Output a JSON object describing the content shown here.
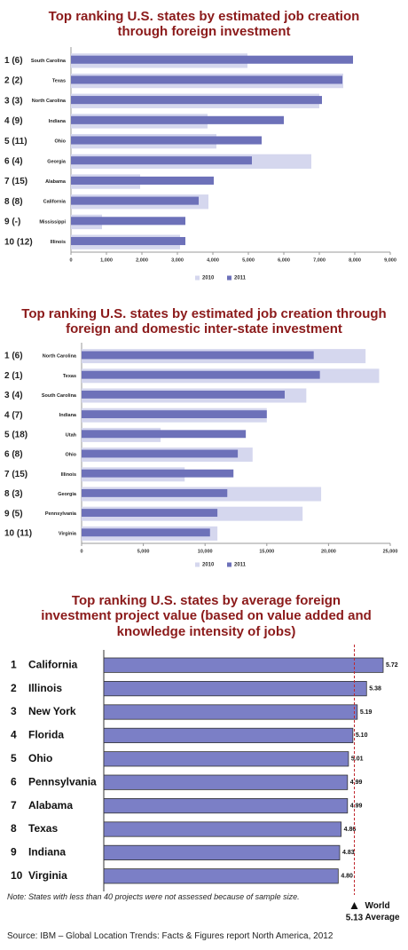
{
  "chart_data": [
    {
      "type": "bar",
      "title": "Top ranking U.S. states by estimated job creation through foreign investment",
      "ranks": [
        "1 (6)",
        "2 (2)",
        "3 (3)",
        "4 (9)",
        "5 (11)",
        "6 (4)",
        "7 (15)",
        "8 (8)",
        "9 (-)",
        "10 (12)"
      ],
      "categories": [
        "South Carolina",
        "Texas",
        "North Carolina",
        "Indiana",
        "Ohio",
        "Georgia",
        "Alabama",
        "California",
        "Mississippi",
        "Illinois"
      ],
      "series": [
        {
          "name": "2010",
          "color": "#d5d7ee",
          "values": [
            4975,
            7675,
            7000,
            3850,
            4100,
            6775,
            1950,
            3875,
            875,
            3075
          ]
        },
        {
          "name": "2011",
          "color": "#6d71b9",
          "values": [
            7950,
            7650,
            7075,
            6000,
            5375,
            5100,
            4025,
            3600,
            3225,
            3225
          ]
        }
      ],
      "xlim": [
        0,
        9000
      ],
      "xticks": [
        0,
        {
          "value": 1000,
          "label": "1,000"
        },
        {
          "value": 2000,
          "label": "2,000"
        },
        {
          "value": 3000,
          "label": "3,000"
        },
        {
          "value": 4000,
          "label": "4,000"
        },
        {
          "value": 5000,
          "label": "5,000"
        },
        {
          "value": 6000,
          "label": "6,000"
        },
        {
          "value": 7000,
          "label": "7,000"
        },
        {
          "value": 8000,
          "label": "8,000"
        },
        {
          "value": 9000,
          "label": "9,000"
        }
      ]
    },
    {
      "type": "bar",
      "title": "Top ranking U.S. states by estimated job creation through foreign and domestic inter-state investment",
      "ranks": [
        "1 (6)",
        "2 (1)",
        "3 (4)",
        "4 (7)",
        "5 (18)",
        "6 (8)",
        "7 (15)",
        "8 (3)",
        "9 (5)",
        "10 (11)"
      ],
      "categories": [
        "North Carolina",
        "Texas",
        "South Carolina",
        "Indiana",
        "Utah",
        "Ohio",
        "Illinois",
        "Georgia",
        "Pennsylvania",
        "Virginia"
      ],
      "series": [
        {
          "name": "2010",
          "color": "#d5d7ee",
          "values": [
            23000,
            24100,
            18200,
            15000,
            6400,
            13850,
            8350,
            19400,
            17900,
            11000
          ]
        },
        {
          "name": "2011",
          "color": "#6d71b9",
          "values": [
            18800,
            19300,
            16450,
            15000,
            13300,
            12650,
            12300,
            11800,
            11000,
            10400
          ]
        }
      ],
      "xlim": [
        0,
        25000
      ],
      "xticks": [
        0,
        {
          "value": 5000,
          "label": "5,000"
        },
        {
          "value": 10000,
          "label": "10,000"
        },
        {
          "value": 15000,
          "label": "15,000"
        },
        {
          "value": 20000,
          "label": "20,000"
        },
        {
          "value": 25000,
          "label": "25,000"
        }
      ]
    },
    {
      "type": "bar",
      "title": "Top ranking U.S. states by average foreign investment project value (based on value added and knowledge intensity of jobs)",
      "ranks": [
        "1",
        "2",
        "3",
        "4",
        "5",
        "6",
        "7",
        "8",
        "9",
        "10"
      ],
      "categories": [
        "California",
        "Illinois",
        "New York",
        "Florida",
        "Ohio",
        "Pennsylvania",
        "Alabama",
        "Texas",
        "Indiana",
        "Virginia"
      ],
      "values": [
        5.72,
        5.38,
        5.19,
        5.1,
        5.01,
        4.99,
        4.99,
        4.86,
        4.83,
        4.8
      ],
      "value_labels": [
        "5.72",
        "5.38",
        "5.19",
        "5.10",
        "5.01",
        "4.99",
        "4.99",
        "4.86",
        "4.83",
        "4.80"
      ],
      "color": "#7b7fc6",
      "reference": {
        "value": 5.13,
        "label": "World Average",
        "color": "#c0272d"
      },
      "note": "Note: States with less than 40 projects were not assessed because of sample size."
    }
  ],
  "source": "Source: IBM – Global Location Trends: Facts & Figures report North America, 2012"
}
